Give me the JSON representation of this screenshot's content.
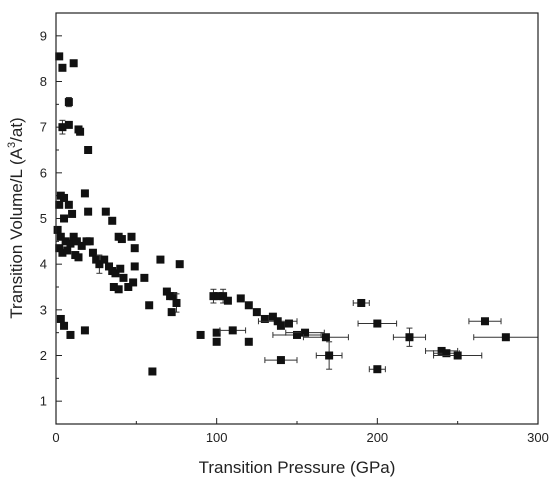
{
  "chart_data": {
    "type": "scatter",
    "title": "",
    "xlabel": "Transition Pressure (GPa)",
    "ylabel_main": "Transition Volume/L (A",
    "ylabel_sup": "3",
    "ylabel_tail": "/at)",
    "xlim": [
      0,
      300
    ],
    "ylim": [
      0.5,
      9.5
    ],
    "xticks": [
      0,
      100,
      200,
      300
    ],
    "yticks": [
      1,
      2,
      3,
      4,
      5,
      6,
      7,
      8,
      9
    ],
    "xtick_labels": [
      "0",
      "100",
      "200",
      "300"
    ],
    "ytick_labels": [
      "1",
      "2",
      "3",
      "4",
      "5",
      "6",
      "7",
      "8",
      "9"
    ],
    "grid": false,
    "legend": "none",
    "marker_color": "#111111",
    "points": [
      {
        "x": 2,
        "y": 8.55
      },
      {
        "x": 4,
        "y": 8.3
      },
      {
        "x": 11,
        "y": 8.4
      },
      {
        "x": 8,
        "y": 7.55,
        "yerr": 0.1
      },
      {
        "x": 4,
        "y": 7.0,
        "yerr": 0.15
      },
      {
        "x": 8,
        "y": 7.05
      },
      {
        "x": 14,
        "y": 6.95
      },
      {
        "x": 15,
        "y": 6.9
      },
      {
        "x": 20,
        "y": 6.5
      },
      {
        "x": 3,
        "y": 5.5
      },
      {
        "x": 5,
        "y": 5.45
      },
      {
        "x": 2,
        "y": 5.3
      },
      {
        "x": 18,
        "y": 5.55
      },
      {
        "x": 20,
        "y": 5.15
      },
      {
        "x": 8,
        "y": 5.3
      },
      {
        "x": 5,
        "y": 5.0
      },
      {
        "x": 10,
        "y": 5.1
      },
      {
        "x": 1,
        "y": 4.75
      },
      {
        "x": 3,
        "y": 4.6
      },
      {
        "x": 6,
        "y": 4.5
      },
      {
        "x": 9,
        "y": 4.45
      },
      {
        "x": 11,
        "y": 4.6
      },
      {
        "x": 13,
        "y": 4.5
      },
      {
        "x": 16,
        "y": 4.4
      },
      {
        "x": 2,
        "y": 4.35
      },
      {
        "x": 4,
        "y": 4.25
      },
      {
        "x": 7,
        "y": 4.3
      },
      {
        "x": 12,
        "y": 4.2
      },
      {
        "x": 14,
        "y": 4.15
      },
      {
        "x": 19,
        "y": 4.5
      },
      {
        "x": 21,
        "y": 4.5
      },
      {
        "x": 23,
        "y": 4.25
      },
      {
        "x": 25,
        "y": 4.1
      },
      {
        "x": 27,
        "y": 4.0,
        "yerr": 0.2
      },
      {
        "x": 30,
        "y": 4.1
      },
      {
        "x": 33,
        "y": 3.95
      },
      {
        "x": 35,
        "y": 3.85
      },
      {
        "x": 37,
        "y": 3.8
      },
      {
        "x": 40,
        "y": 3.9
      },
      {
        "x": 42,
        "y": 3.7
      },
      {
        "x": 45,
        "y": 3.5
      },
      {
        "x": 48,
        "y": 3.6
      },
      {
        "x": 36,
        "y": 3.5
      },
      {
        "x": 39,
        "y": 3.45
      },
      {
        "x": 31,
        "y": 5.15
      },
      {
        "x": 35,
        "y": 4.95
      },
      {
        "x": 39,
        "y": 4.6
      },
      {
        "x": 41,
        "y": 4.55
      },
      {
        "x": 47,
        "y": 4.6
      },
      {
        "x": 49,
        "y": 4.35
      },
      {
        "x": 49,
        "y": 3.95
      },
      {
        "x": 55,
        "y": 3.7
      },
      {
        "x": 58,
        "y": 3.1
      },
      {
        "x": 65,
        "y": 4.1
      },
      {
        "x": 69,
        "y": 3.4
      },
      {
        "x": 71,
        "y": 3.3
      },
      {
        "x": 73,
        "y": 3.3
      },
      {
        "x": 75,
        "y": 3.15,
        "yerr": 0.2
      },
      {
        "x": 77,
        "y": 4.0
      },
      {
        "x": 72,
        "y": 2.95
      },
      {
        "x": 60,
        "y": 1.65
      },
      {
        "x": 90,
        "y": 2.45
      },
      {
        "x": 100,
        "y": 2.5
      },
      {
        "x": 100,
        "y": 2.3
      },
      {
        "x": 110,
        "y": 2.55,
        "xerr": 8
      },
      {
        "x": 120,
        "y": 2.3
      },
      {
        "x": 98,
        "y": 3.3,
        "yerr": 0.15
      },
      {
        "x": 101,
        "y": 3.3
      },
      {
        "x": 104,
        "y": 3.3,
        "yerr": 0.15
      },
      {
        "x": 107,
        "y": 3.2
      },
      {
        "x": 115,
        "y": 3.25
      },
      {
        "x": 120,
        "y": 3.1
      },
      {
        "x": 125,
        "y": 2.95
      },
      {
        "x": 130,
        "y": 2.8
      },
      {
        "x": 135,
        "y": 2.85
      },
      {
        "x": 138,
        "y": 2.75,
        "xerr": 12
      },
      {
        "x": 140,
        "y": 2.65
      },
      {
        "x": 145,
        "y": 2.7
      },
      {
        "x": 150,
        "y": 2.45,
        "xerr": 15
      },
      {
        "x": 155,
        "y": 2.5,
        "xerr": 12
      },
      {
        "x": 168,
        "y": 2.4,
        "xerr": 14
      },
      {
        "x": 140,
        "y": 1.9,
        "xerr": 10
      },
      {
        "x": 170,
        "y": 2.0,
        "xerr": 8,
        "yerr": 0.3
      },
      {
        "x": 190,
        "y": 3.15,
        "xerr": 5
      },
      {
        "x": 200,
        "y": 2.7,
        "xerr": 12
      },
      {
        "x": 200,
        "y": 1.7,
        "xerr": 5
      },
      {
        "x": 220,
        "y": 2.4,
        "xerr": 10,
        "yerr": 0.2
      },
      {
        "x": 240,
        "y": 2.1,
        "xerr": 10
      },
      {
        "x": 243,
        "y": 2.05,
        "xerr": 8
      },
      {
        "x": 250,
        "y": 2.0,
        "xerr": 15
      },
      {
        "x": 267,
        "y": 2.75,
        "xerr": 10
      },
      {
        "x": 280,
        "y": 2.4,
        "xerr": 20
      },
      {
        "x": 3,
        "y": 2.8
      },
      {
        "x": 5,
        "y": 2.65
      },
      {
        "x": 9,
        "y": 2.45
      },
      {
        "x": 18,
        "y": 2.55
      }
    ]
  }
}
